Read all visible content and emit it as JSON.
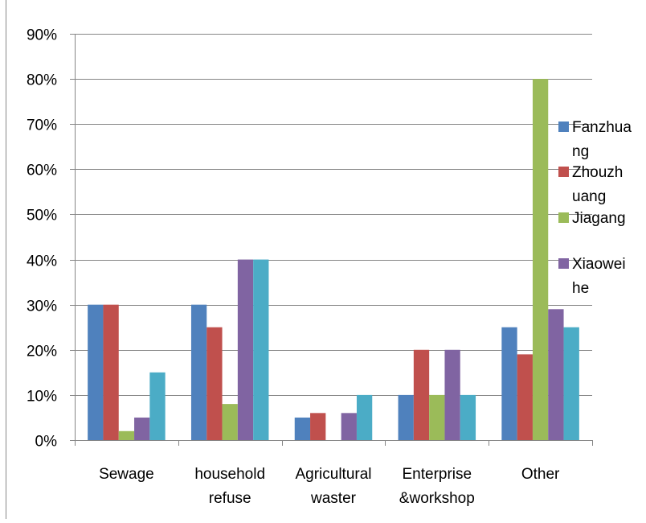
{
  "chart_data": {
    "type": "bar",
    "categories": [
      [
        "Sewage"
      ],
      [
        "household",
        "refuse"
      ],
      [
        "Agricultural",
        "waster"
      ],
      [
        "Enterprise",
        "&workshop"
      ],
      [
        "Other"
      ]
    ],
    "series": [
      {
        "name": [
          "Fanzhua",
          "ng"
        ],
        "color": "#4F81BD",
        "values": [
          30,
          30,
          5,
          10,
          25
        ]
      },
      {
        "name": [
          "Zhouzh",
          "uang"
        ],
        "color": "#C0504D",
        "values": [
          30,
          25,
          6,
          20,
          19
        ]
      },
      {
        "name": [
          "Jiagang"
        ],
        "color": "#9BBB59",
        "values": [
          2,
          8,
          0,
          10,
          80
        ]
      },
      {
        "name": [
          "Xiaowei",
          "he"
        ],
        "color": "#8064A2",
        "values": [
          5,
          40,
          6,
          20,
          29
        ]
      },
      {
        "color": "#4BACC6",
        "values": [
          15,
          40,
          10,
          10,
          25
        ]
      }
    ],
    "yticks": [
      "0%",
      "10%",
      "20%",
      "30%",
      "40%",
      "50%",
      "60%",
      "70%",
      "80%",
      "90%"
    ],
    "ylim": [
      0,
      90
    ],
    "grid": true,
    "legend_position": "right"
  }
}
